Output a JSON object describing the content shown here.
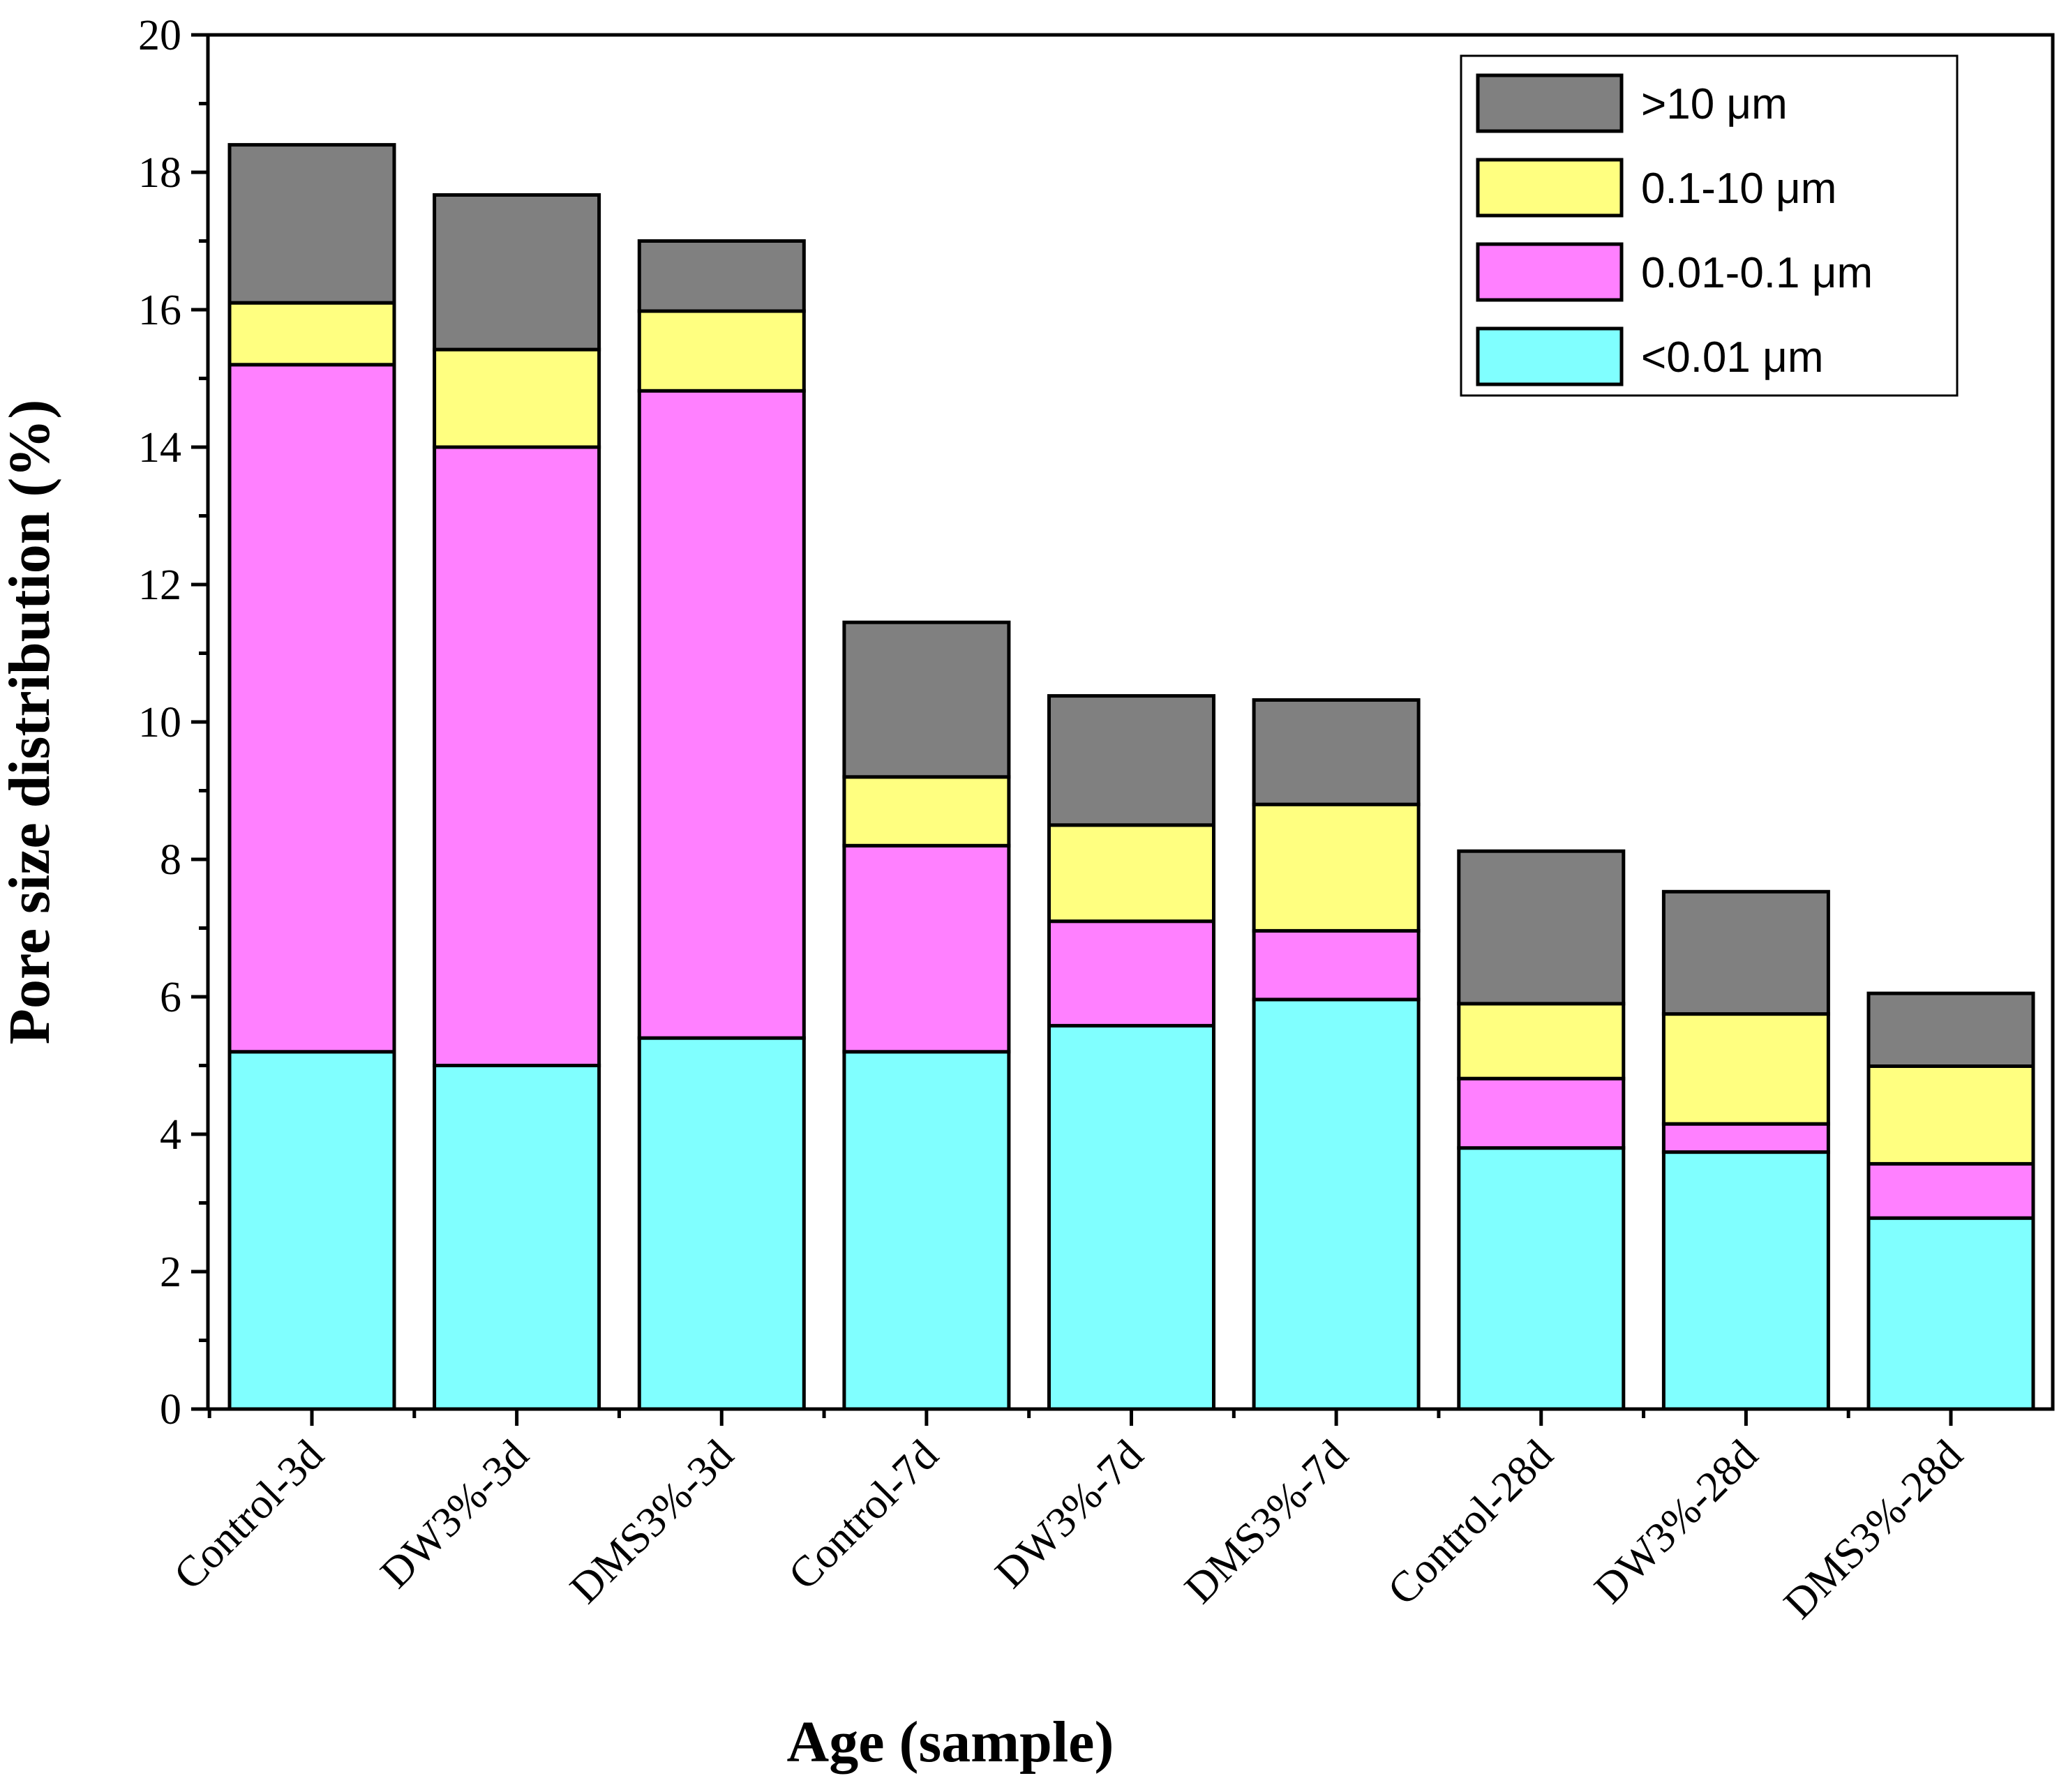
{
  "chart_data": {
    "type": "bar",
    "stacked": true,
    "title": "",
    "xlabel": "Age (sample)",
    "ylabel": "Pore size distribution (%)",
    "ylim": [
      0,
      20
    ],
    "yticks": [
      "0",
      "2",
      "4",
      "6",
      "8",
      "10",
      "12",
      "14",
      "16",
      "18",
      "20"
    ],
    "categories": [
      "Control-3d",
      "DW3%-3d",
      "DMS3%-3d",
      "Control-7d",
      "DW3%-7d",
      "DMS3%-7d",
      "Control-28d",
      "DW3%-28d",
      "DMS3%-28d"
    ],
    "series": [
      {
        "name": "<0.01 μm",
        "color": "#80ffff",
        "values": [
          5.2,
          5.0,
          5.4,
          5.2,
          5.58,
          5.96,
          3.8,
          3.74,
          2.78
        ]
      },
      {
        "name": "0.01-0.1 μm",
        "color": "#ff80ff",
        "values": [
          10.0,
          9.0,
          9.42,
          3.0,
          1.52,
          1.0,
          1.01,
          0.41,
          0.79
        ]
      },
      {
        "name": "0.1-10 μm",
        "color": "#ffff80",
        "values": [
          0.9,
          1.42,
          1.16,
          1.0,
          1.4,
          1.84,
          1.09,
          1.6,
          1.42
        ]
      },
      {
        "name": ">10 μm",
        "color": "#808080",
        "values": [
          2.3,
          2.25,
          1.02,
          2.25,
          1.88,
          1.52,
          2.22,
          1.78,
          1.06
        ]
      }
    ],
    "legend": {
      "position": "top-right",
      "entries": [
        ">10 μm",
        "0.1-10 μm",
        "0.01-0.1 μm",
        "<0.01 μm"
      ]
    },
    "grid": false
  }
}
